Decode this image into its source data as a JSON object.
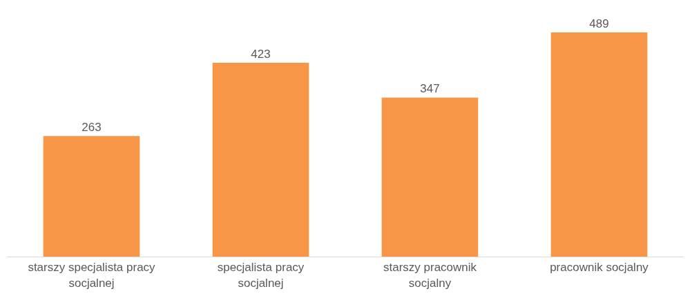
{
  "chart_data": {
    "type": "bar",
    "categories": [
      "starszy specjalista pracy socjalnej",
      "specjalista pracy socjalnej",
      "starszy pracownik socjalny",
      "pracownik socjalny"
    ],
    "values": [
      263,
      423,
      347,
      489
    ],
    "color": "#f79646",
    "data_labels": true
  }
}
